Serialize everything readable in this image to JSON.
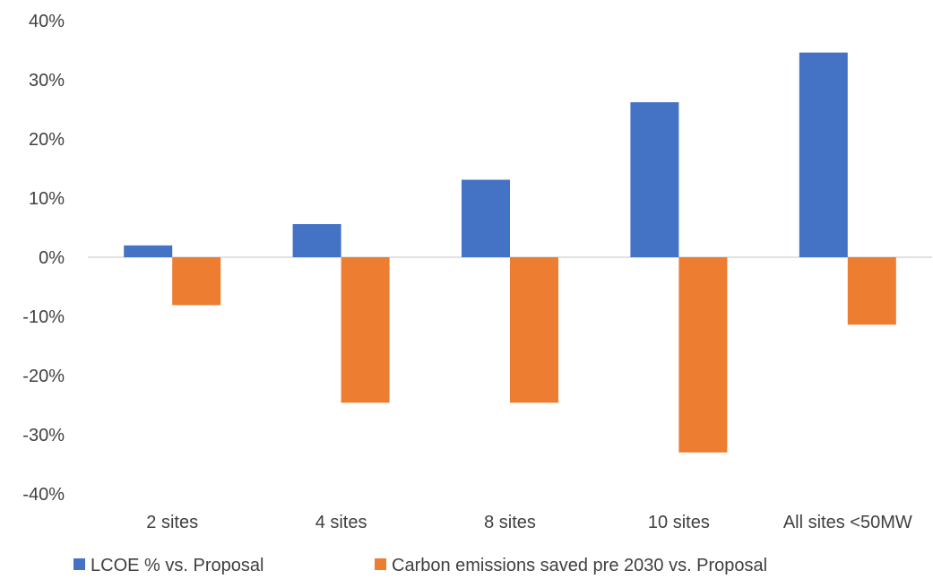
{
  "chart_data": {
    "type": "bar",
    "title": "",
    "xlabel": "",
    "ylabel": "",
    "ylim": [
      -0.4,
      0.4
    ],
    "yticks": [
      0.4,
      0.3,
      0.2,
      0.1,
      0,
      -0.1,
      -0.2,
      -0.3,
      -0.4
    ],
    "ytick_labels": [
      "40%",
      "30%",
      "20%",
      "10%",
      "0%",
      "-10%",
      "-20%",
      "-30%",
      "-40%"
    ],
    "categories": [
      "2 sites",
      "4 sites",
      "8 sites",
      "10 sites",
      "All sites <50MW"
    ],
    "series": [
      {
        "name": "LCOE % vs. Proposal",
        "color": "#4472C4",
        "values": [
          0.02,
          0.056,
          0.131,
          0.262,
          0.346
        ]
      },
      {
        "name": "Carbon emissions saved pre 2030 vs. Proposal",
        "color": "#ED7D31",
        "values": [
          -0.081,
          -0.246,
          -0.246,
          -0.33,
          -0.114
        ]
      }
    ],
    "grid": false,
    "legend_position": "bottom"
  }
}
